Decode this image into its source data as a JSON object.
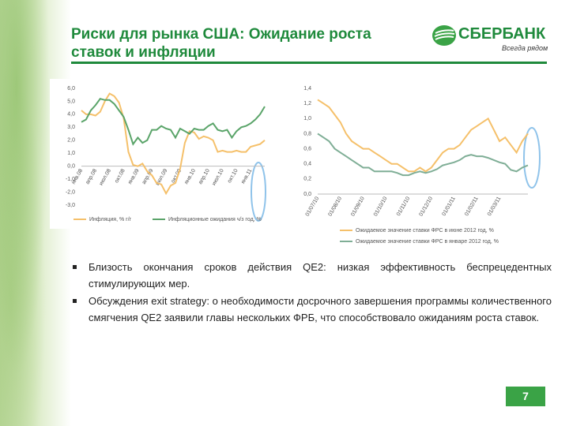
{
  "header": {
    "title": "Риски для рынка США: Ожидание роста ставок и инфляции"
  },
  "logo": {
    "name": "СБЕРБАНК",
    "slogan": "Всегда рядом"
  },
  "chart_data": [
    {
      "type": "line",
      "categories": [
        "янв.08",
        null,
        null,
        "апр.08",
        null,
        null,
        "июл.08",
        null,
        null,
        "окт.08",
        null,
        null,
        "янв.09",
        null,
        null,
        "апр.09",
        null,
        null,
        "июл.09",
        null,
        null,
        "окт.09",
        null,
        null,
        "янв.10",
        null,
        null,
        "апр.10",
        null,
        null,
        "июл.10",
        null,
        null,
        "окт.10",
        null,
        null,
        "янв.11",
        null,
        null,
        null
      ],
      "series": [
        {
          "name": "Инфляция, % г/г",
          "color": "#f5c06a",
          "values": [
            4.3,
            4.0,
            4.0,
            3.9,
            4.2,
            5.0,
            5.6,
            5.4,
            4.9,
            3.7,
            1.1,
            0.1,
            0.0,
            0.2,
            -0.4,
            -0.7,
            -1.3,
            -1.4,
            -2.1,
            -1.5,
            -1.3,
            -0.2,
            1.8,
            2.7,
            2.6,
            2.1,
            2.3,
            2.2,
            2.0,
            1.1,
            1.2,
            1.1,
            1.1,
            1.2,
            1.1,
            1.1,
            1.5,
            1.6,
            1.7,
            2.0
          ]
        },
        {
          "name": "Инфляционные ожидания ч/з год, %",
          "color": "#5aa469",
          "values": [
            3.4,
            3.6,
            4.3,
            4.7,
            5.2,
            5.1,
            5.1,
            4.8,
            4.3,
            3.8,
            2.8,
            1.7,
            2.2,
            1.8,
            2.0,
            2.8,
            2.8,
            3.1,
            2.9,
            2.8,
            2.2,
            2.9,
            2.7,
            2.5,
            2.9,
            2.8,
            2.8,
            3.1,
            3.3,
            2.8,
            2.7,
            2.8,
            2.2,
            2.7,
            3.0,
            3.1,
            3.3,
            3.6,
            4.0,
            4.6
          ]
        }
      ],
      "ylim": [
        -3,
        6
      ],
      "yticks": [
        {
          "value": -3,
          "label": "-3,0"
        },
        {
          "value": -2,
          "label": "-2,0"
        },
        {
          "value": -1,
          "label": "-1,0"
        },
        {
          "value": 0,
          "label": "0,0"
        },
        {
          "value": 1,
          "label": "1,0"
        },
        {
          "value": 2,
          "label": "2,0"
        },
        {
          "value": 3,
          "label": "3,0"
        },
        {
          "value": 4,
          "label": "4,0"
        },
        {
          "value": 5,
          "label": "5,0"
        },
        {
          "value": 6,
          "label": "6,0"
        }
      ],
      "grid": false,
      "legend": "bottom"
    },
    {
      "type": "line",
      "categories": [
        "01/07/10",
        null,
        null,
        null,
        "01/08/10",
        null,
        null,
        null,
        "01/09/10",
        null,
        null,
        null,
        "01/10/10",
        null,
        null,
        null,
        "01/11/10",
        null,
        null,
        null,
        "01/12/10",
        null,
        null,
        null,
        "01/01/11",
        null,
        null,
        null,
        "01/02/11",
        null,
        null,
        null,
        "01/03/11",
        null,
        null,
        null,
        null,
        null
      ],
      "series": [
        {
          "name": "Ожидаемое значение ставки ФРС в июне 2012 год, %",
          "color": "#f5c06a",
          "values": [
            1.25,
            1.2,
            1.15,
            1.05,
            0.95,
            0.8,
            0.7,
            0.65,
            0.6,
            0.6,
            0.55,
            0.5,
            0.45,
            0.4,
            0.4,
            0.35,
            0.3,
            0.3,
            0.35,
            0.3,
            0.35,
            0.45,
            0.55,
            0.6,
            0.6,
            0.65,
            0.75,
            0.85,
            0.9,
            0.95,
            1.0,
            0.85,
            0.7,
            0.75,
            0.65,
            0.55,
            0.7,
            0.8
          ]
        },
        {
          "name": "Ожидаемое значение ставки ФРС в январе 2012 год, %",
          "color": "#7fae96",
          "values": [
            0.8,
            0.75,
            0.7,
            0.6,
            0.55,
            0.5,
            0.45,
            0.4,
            0.35,
            0.35,
            0.3,
            0.3,
            0.3,
            0.3,
            0.28,
            0.25,
            0.25,
            0.28,
            0.3,
            0.28,
            0.3,
            0.33,
            0.38,
            0.4,
            0.42,
            0.45,
            0.5,
            0.52,
            0.5,
            0.5,
            0.48,
            0.45,
            0.42,
            0.4,
            0.32,
            0.3,
            0.35,
            0.38
          ]
        }
      ],
      "ylim": [
        0,
        1.4
      ],
      "yticks": [
        {
          "value": 0,
          "label": "0,0"
        },
        {
          "value": 0.2,
          "label": "0,2"
        },
        {
          "value": 0.4,
          "label": "0,4"
        },
        {
          "value": 0.6,
          "label": "0,6"
        },
        {
          "value": 0.8,
          "label": "0,8"
        },
        {
          "value": 1.0,
          "label": "1,0"
        },
        {
          "value": 1.2,
          "label": "1,2"
        },
        {
          "value": 1.4,
          "label": "1,4"
        }
      ],
      "grid": false,
      "legend": "bottom"
    }
  ],
  "bullets": [
    "Близость окончания сроков действия QE2: низкая эффективность беспрецедентных стимулирующих мер.",
    "Обсуждения exit strategy: о необходимости досрочного завершения программы количественного смягчения QE2 заявили главы нескольких ФРБ, что способствовало ожиданиям роста ставок."
  ],
  "page_number": "7"
}
